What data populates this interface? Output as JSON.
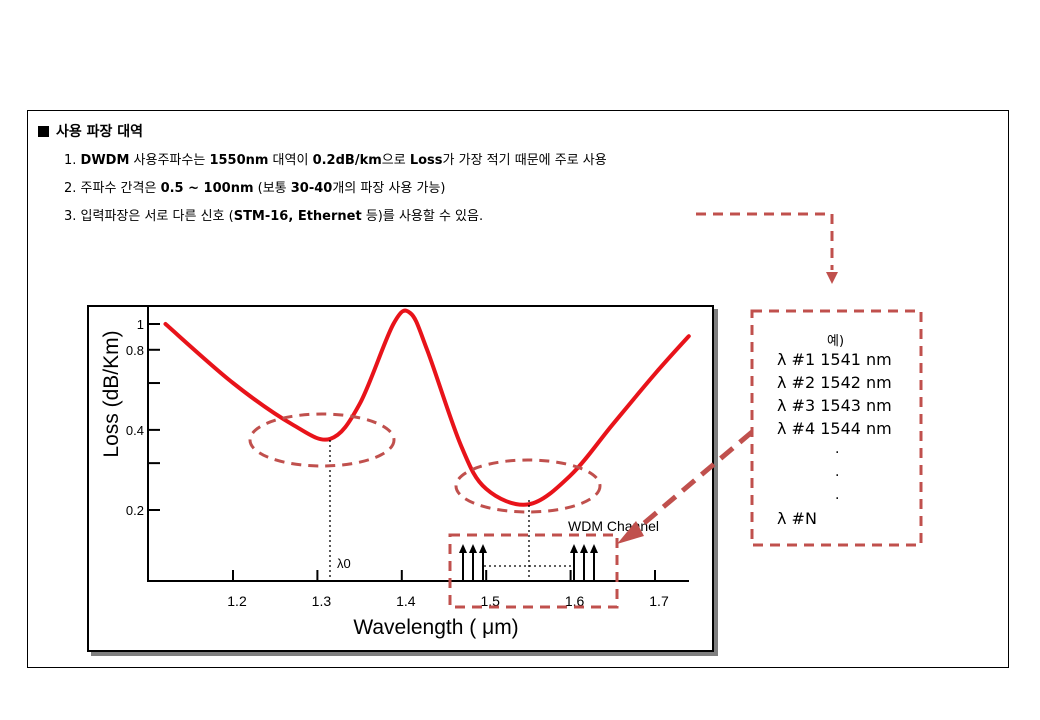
{
  "heading": "사용 파장 대역",
  "notes": [
    {
      "num": "1.",
      "bold1": "DWDM",
      "text1": " 사용주파수는 ",
      "bold2": "1550nm",
      "text2": " 대역이 ",
      "bold3": "0.2dB/km",
      "text3": "으로 ",
      "bold4": "Loss",
      "text4": "가 가장 적기 때문에 주로 사용"
    },
    {
      "num": "2.",
      "text1": " 주파수 간격은 ",
      "bold1": "0.5 ~ 100nm",
      "text2": " (보통 ",
      "bold2": "30-40",
      "text3": "개의 파장 사용 가능)"
    },
    {
      "num": "3.",
      "text1": " 입력파장은 서로 다른 신호 (",
      "bold1": "STM-16, Ethernet",
      "text2": " 등)를 사용할 수 있음."
    }
  ],
  "chart_data": {
    "type": "line",
    "title": "",
    "xlabel": "Wavelength ( μm)",
    "ylabel": "Loss (dB/Km)",
    "x_ticks": [
      "1.2",
      "1.3",
      "1.4",
      "1.5",
      "1.6",
      "1.7"
    ],
    "y_ticks": [
      "1",
      "0.8",
      "0.4",
      "0.2"
    ],
    "xlim": [
      1.1,
      1.75
    ],
    "ylog": true,
    "series": [
      {
        "x": [
          1.12,
          1.2,
          1.27,
          1.315,
          1.35,
          1.39,
          1.41,
          1.43,
          1.47,
          1.5,
          1.55,
          1.6,
          1.65,
          1.7,
          1.74
        ],
        "y": [
          1.0,
          0.6,
          0.42,
          0.37,
          0.5,
          1.0,
          1.1,
          0.8,
          0.35,
          0.24,
          0.21,
          0.27,
          0.42,
          0.65,
          0.9
        ]
      }
    ],
    "annotations": {
      "lambda0": "λ0",
      "wdm": "WDM Channel"
    },
    "line_color": "#e8131a",
    "highlight_color": "#c0504d"
  },
  "example": {
    "title": "예)",
    "lines": [
      "λ #1 1541  nm",
      "λ #2 1542  nm",
      "λ #3 1543  nm",
      "λ #4 1544  nm"
    ],
    "dots": [
      "·",
      "·",
      "·"
    ],
    "last": "λ #N"
  }
}
